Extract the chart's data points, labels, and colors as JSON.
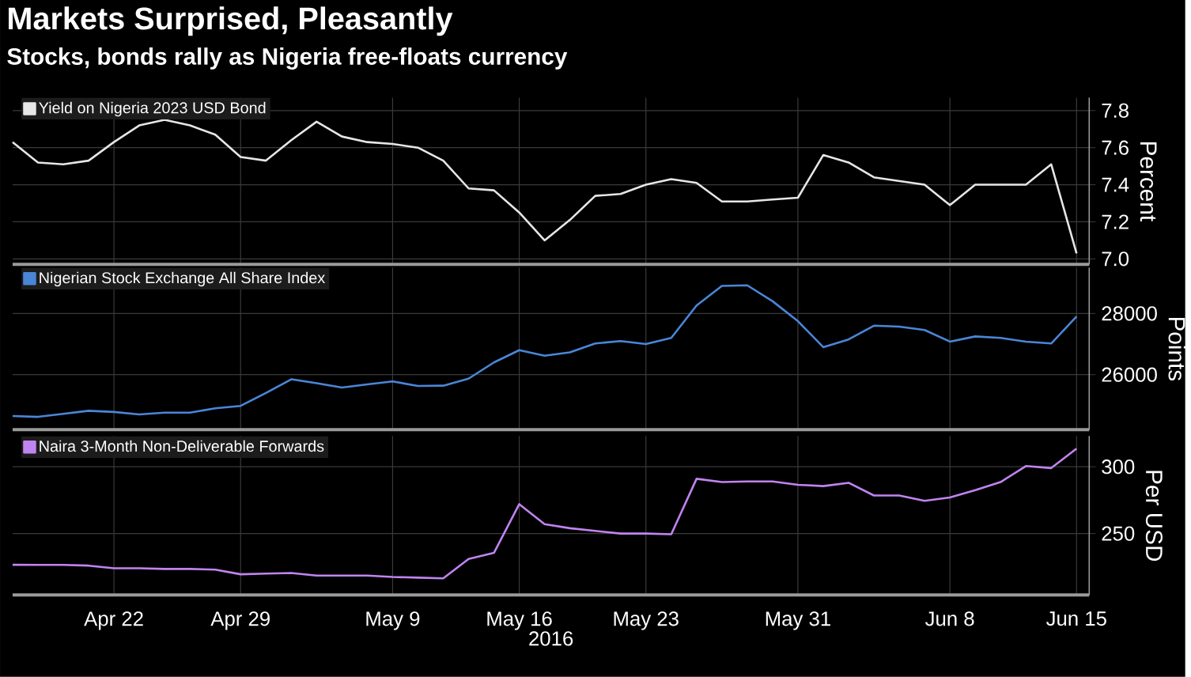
{
  "chart_data": [
    {
      "type": "line",
      "title": "Markets Surprised, Pleasantly",
      "subtitle": "Stocks, bonds rally as Nigeria free-floats currency",
      "ylabel": "Percent",
      "legend": "top left",
      "grid": true,
      "tick_labels": "y",
      "categories": [
        null,
        null,
        null,
        null,
        null,
        null,
        null,
        null,
        null,
        null,
        null,
        null,
        null,
        null,
        null,
        null,
        null,
        null,
        null,
        null,
        null,
        null,
        null,
        null,
        null,
        null,
        null,
        null,
        null,
        null,
        null,
        null,
        null,
        null,
        null,
        null,
        null,
        null,
        null,
        null,
        null,
        null,
        null
      ],
      "ylim": [
        6.97,
        7.87
      ],
      "yticks": [
        {
          "value": 7.0,
          "label": "7.0"
        },
        {
          "value": 7.2,
          "label": "7.2"
        },
        {
          "value": 7.4,
          "label": "7.4"
        },
        {
          "value": 7.6,
          "label": "7.6"
        },
        {
          "value": 7.8,
          "label": "7.8"
        }
      ],
      "series": [
        {
          "name": "Yield on Nigeria 2023 USD Bond",
          "color": "#e6e6e6",
          "values": [
            7.63,
            7.52,
            7.51,
            7.53,
            7.63,
            7.72,
            7.75,
            7.72,
            7.67,
            7.55,
            7.53,
            7.64,
            7.74,
            7.66,
            7.63,
            7.62,
            7.6,
            7.53,
            7.38,
            7.37,
            7.25,
            7.1,
            7.21,
            7.34,
            7.35,
            7.4,
            7.43,
            7.41,
            7.31,
            7.31,
            7.32,
            7.33,
            7.56,
            7.52,
            7.44,
            7.42,
            7.4,
            7.29,
            7.4,
            7.4,
            7.4,
            7.51,
            7.03
          ]
        }
      ]
    },
    {
      "type": "line",
      "ylabel": "Points",
      "legend": "top left",
      "grid": true,
      "tick_labels": "y",
      "categories": [
        null,
        null,
        null,
        null,
        null,
        null,
        null,
        null,
        null,
        null,
        null,
        null,
        null,
        null,
        null,
        null,
        null,
        null,
        null,
        null,
        null,
        null,
        null,
        null,
        null,
        null,
        null,
        null,
        null,
        null,
        null,
        null,
        null,
        null,
        null,
        null,
        null,
        null,
        null,
        null,
        null,
        null,
        null
      ],
      "ylim": [
        24200,
        29500
      ],
      "yticks": [
        26000,
        28000
      ],
      "series": [
        {
          "name": "Nigerian Stock Exchange All Share Index",
          "color": "#4a86d8",
          "values": [
            24650,
            24620,
            24720,
            24820,
            24780,
            24700,
            24760,
            24760,
            24900,
            24980,
            25400,
            25850,
            25720,
            25580,
            25680,
            25780,
            25630,
            25640,
            25870,
            26400,
            26800,
            26620,
            26730,
            27020,
            27100,
            27000,
            27200,
            28260,
            28900,
            28920,
            28400,
            27750,
            26900,
            27150,
            27600,
            27570,
            27460,
            27080,
            27250,
            27200,
            27080,
            27020,
            27900
          ]
        }
      ]
    },
    {
      "type": "line",
      "ylabel": "Per USD",
      "xlabel": "2016",
      "legend": "top left",
      "grid": true,
      "categories": [
        null,
        null,
        null,
        null,
        "Apr 22",
        null,
        null,
        null,
        null,
        "Apr 29",
        null,
        null,
        null,
        null,
        null,
        "May 9",
        null,
        null,
        null,
        null,
        "May 16",
        null,
        null,
        null,
        null,
        "May 23",
        null,
        null,
        null,
        null,
        null,
        "May 31",
        null,
        null,
        null,
        null,
        null,
        "Jun 8",
        null,
        null,
        null,
        null,
        "Jun 15"
      ],
      "ylim": [
        204,
        323
      ],
      "yticks": [
        250,
        300
      ],
      "series": [
        {
          "name": "Naira 3-Month Non-Deliverable Forwards",
          "color": "#c084f0",
          "values": [
            226.6,
            226.5,
            226.5,
            226,
            224,
            224,
            223.5,
            223.5,
            223,
            219.5,
            220,
            220.5,
            218.5,
            218.5,
            218.5,
            217.5,
            217,
            216.5,
            231,
            235.5,
            272,
            257,
            254,
            252,
            250,
            250,
            249.5,
            291,
            288.5,
            289,
            289,
            286.5,
            285.5,
            288,
            278.5,
            278.5,
            274.5,
            277,
            282.5,
            288.5,
            300.5,
            299,
            313.5
          ]
        }
      ]
    }
  ]
}
